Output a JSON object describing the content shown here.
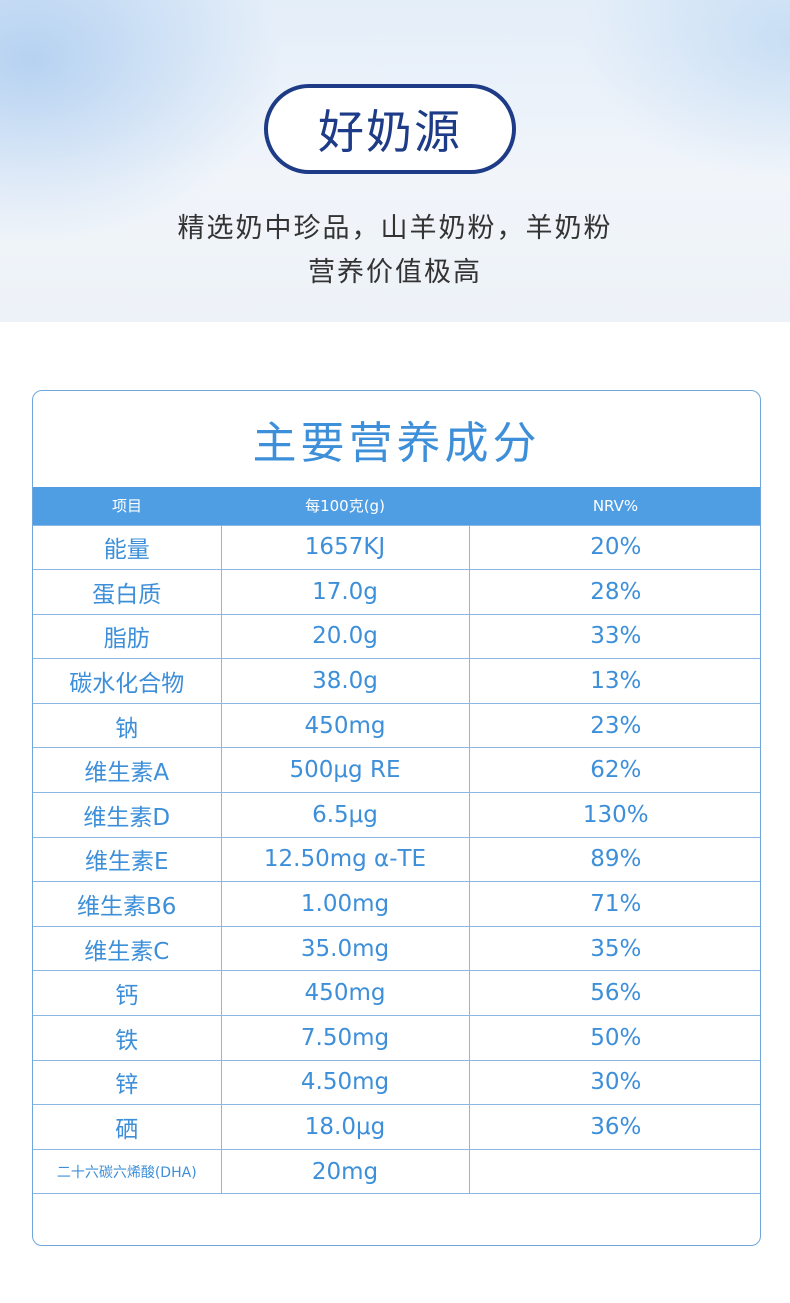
{
  "hero": {
    "badge": "好奶源",
    "line1": "精选奶中珍品，山羊奶粉，羊奶粉",
    "line2": "营养价值极高"
  },
  "card": {
    "title": "主要营养成分",
    "headers": [
      "项目",
      "每100克(g)",
      "NRV%"
    ],
    "rows": [
      {
        "item": "能量",
        "amount": "1657KJ",
        "nrv": "20%"
      },
      {
        "item": "蛋白质",
        "amount": "17.0g",
        "nrv": "28%"
      },
      {
        "item": "脂肪",
        "amount": "20.0g",
        "nrv": "33%"
      },
      {
        "item": "碳水化合物",
        "amount": "38.0g",
        "nrv": "13%"
      },
      {
        "item": "钠",
        "amount": "450mg",
        "nrv": "23%"
      },
      {
        "item": "维生素A",
        "amount": "500μg RE",
        "nrv": "62%"
      },
      {
        "item": "维生素D",
        "amount": "6.5μg",
        "nrv": "130%"
      },
      {
        "item": "维生素E",
        "amount": "12.50mg α-TE",
        "nrv": "89%"
      },
      {
        "item": "维生素B6",
        "amount": "1.00mg",
        "nrv": "71%"
      },
      {
        "item": "维生素C",
        "amount": "35.0mg",
        "nrv": "35%"
      },
      {
        "item": "钙",
        "amount": "450mg",
        "nrv": "56%"
      },
      {
        "item": "铁",
        "amount": "7.50mg",
        "nrv": "50%"
      },
      {
        "item": "锌",
        "amount": "4.50mg",
        "nrv": "30%"
      },
      {
        "item": "硒",
        "amount": "18.0μg",
        "nrv": "36%"
      },
      {
        "item": "二十六碳六烯酸(DHA)",
        "amount": "20mg",
        "nrv": ""
      }
    ]
  },
  "colors": {
    "navy": "#1d3b87",
    "accent_blue": "#3d8fd9",
    "header_blue": "#4f9de3"
  }
}
